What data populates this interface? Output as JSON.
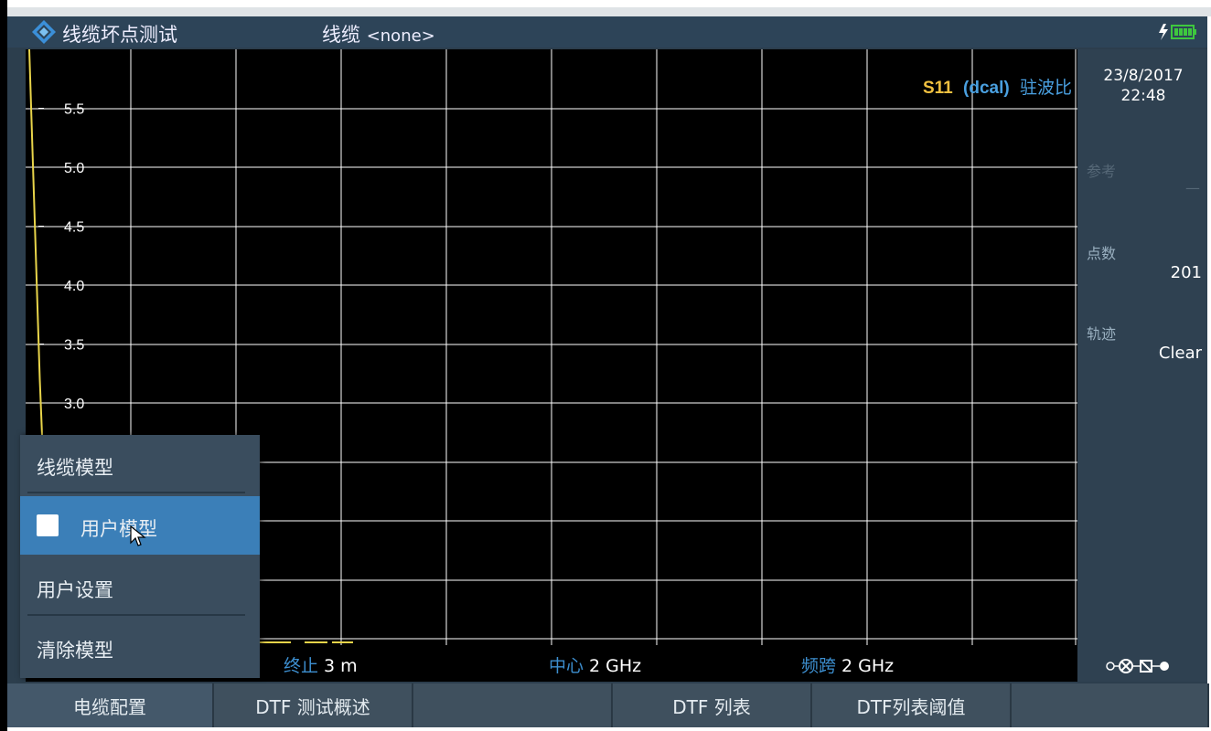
{
  "titlebar": {
    "mode_title": "线缆坏点测试",
    "cable_label": "线缆",
    "cable_value": "<none>"
  },
  "trace": {
    "s_param": "S11",
    "cal": "(dcal)",
    "format": "驻波比"
  },
  "chart_data": {
    "type": "line",
    "y_tick_labels": [
      "5.5",
      "5.0",
      "4.5",
      "4.0",
      "3.5",
      "3.0"
    ],
    "y_axis_visible_range": [
      2.5,
      5.75
    ],
    "x_gridlines": 10,
    "grid": true,
    "series": [
      {
        "color": "#e8d44a",
        "x": [
          0,
          0.2,
          0.4
        ],
        "y": [
          6.5,
          3.2,
          1.0
        ]
      }
    ]
  },
  "measbar": {
    "stop_label": "终止",
    "stop_value": "3 m",
    "center_label": "中心",
    "center_value": "2 GHz",
    "span_label": "频跨",
    "span_value": "2 GHz"
  },
  "sidebar": {
    "date": "23/8/2017",
    "time": "22:48",
    "ref_label": "参考",
    "ref_value": "—",
    "points_label": "点数",
    "points_value": "201",
    "trace_label": "轨迹",
    "trace_value": "Clear"
  },
  "menu": {
    "items": [
      {
        "label": "线缆模型"
      },
      {
        "label": "用户模型",
        "checked": false
      },
      {
        "label": "用户设置"
      },
      {
        "label": "清除模型"
      }
    ]
  },
  "softkeys": [
    {
      "label": "电缆配置"
    },
    {
      "label": "DTF 测试概述"
    },
    {
      "label": ""
    },
    {
      "label": "DTF 列表"
    },
    {
      "label": "DTF列表阈值"
    },
    {
      "label": ""
    }
  ],
  "colors": {
    "plot_background": "#000000",
    "grid": "#ffffff",
    "trace": "#e8d44a",
    "accent_blue": "#3d8fd0",
    "menu_active": "#3b7fb8"
  }
}
